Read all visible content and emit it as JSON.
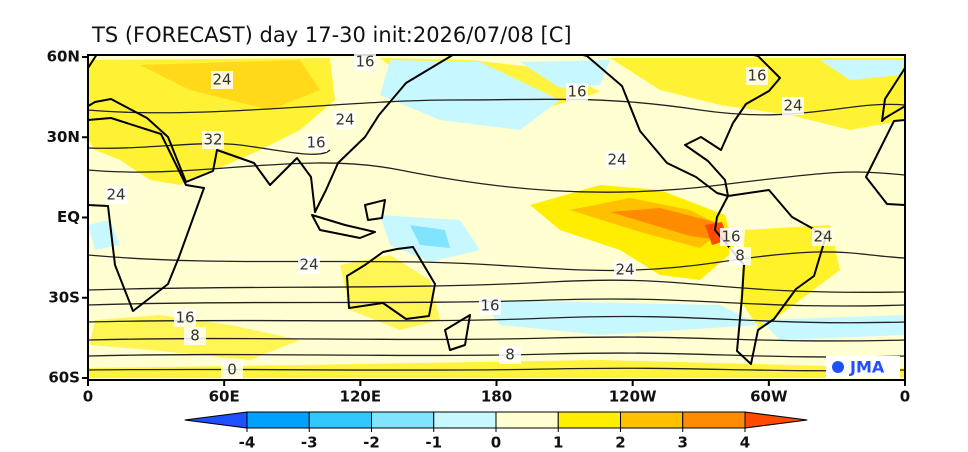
{
  "map": {
    "title": "TS (FORECAST) day 17-30 init:2026/07/08   [C]",
    "lat_labels": [
      "60N",
      "30N",
      "EQ",
      "30S",
      "60S"
    ],
    "lon_labels": [
      "0",
      "60E",
      "120E",
      "180",
      "120W",
      "60W",
      "0"
    ],
    "contour_labels": [
      16,
      24,
      16,
      16,
      24,
      24,
      32,
      16,
      24,
      24,
      16,
      24,
      8,
      24,
      24,
      16,
      16,
      8,
      8,
      0
    ],
    "credit": "JMA"
  },
  "colorbar": {
    "ticks": [
      -4,
      -3,
      -2,
      -1,
      0,
      1,
      2,
      3,
      4
    ],
    "colors": [
      "#1e50ff",
      "#00a0ff",
      "#30c8ff",
      "#80e4ff",
      "#c8f8ff",
      "#ffffd2",
      "#ffee00",
      "#ffc000",
      "#ff8c00",
      "#ff4a00"
    ]
  }
}
